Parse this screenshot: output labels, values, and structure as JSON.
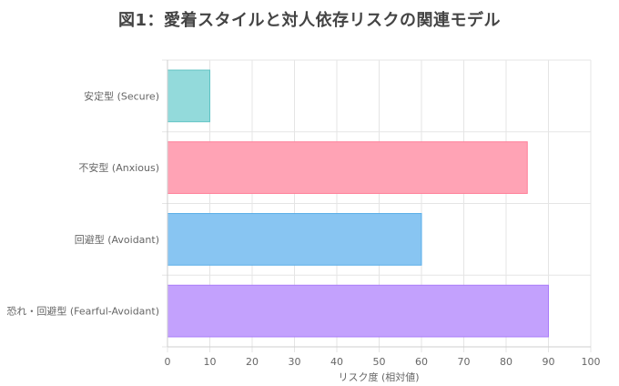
{
  "chart_data": {
    "type": "bar",
    "orientation": "horizontal",
    "title": "図1：愛着スタイルと対人依存リスクの関連モデル",
    "xlabel": "リスク度 (相対値)",
    "ylabel": "",
    "xlim": [
      0,
      100
    ],
    "xticks": [
      "0",
      "10",
      "20",
      "30",
      "40",
      "50",
      "60",
      "70",
      "80",
      "90",
      "100"
    ],
    "grid": true,
    "legend": "none",
    "categories": [
      "安定型 (Secure)",
      "不安型 (Anxious)",
      "回避型 (Avoidant)",
      "恐れ・回避型 (Fearful-Avoidant)"
    ],
    "values": [
      10,
      85,
      60,
      90
    ],
    "colors": [
      {
        "fill": "#93dadb",
        "stroke": "#5fc3c4"
      },
      {
        "fill": "#ffa3b5",
        "stroke": "#ff7f99"
      },
      {
        "fill": "#88c5f2",
        "stroke": "#5aaee8"
      },
      {
        "fill": "#c3a1fd",
        "stroke": "#a97cf9"
      }
    ]
  }
}
